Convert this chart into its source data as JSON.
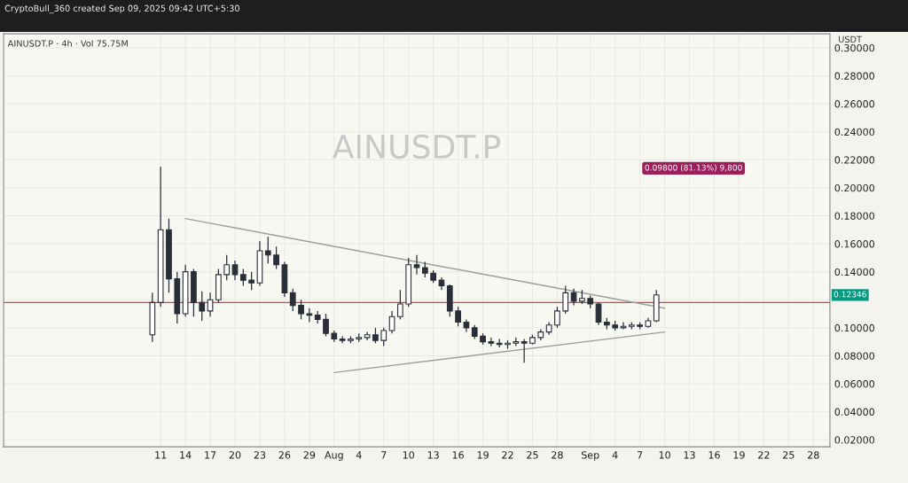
{
  "chart_data": {
    "type": "candlestick",
    "title": "AINUSDT.P",
    "subtitle": "AINUSDT.P · 4h · Vol 75.75M",
    "ylabel": "USDT",
    "annotations": [
      "CryptoBull_360 created Sep 09, 2025 09:42 UTC+5:30",
      "0.09800 (81.13%) 9,800",
      {
        "text": "0.12346",
        "y": 0.12346
      }
    ],
    "series": [
      {
        "color": "#2a2e39",
        "x": [
          "2025-07-10",
          "2025-07-11",
          "2025-07-12",
          "2025-07-13",
          "2025-07-14",
          "2025-07-15",
          "2025-07-16",
          "2025-07-17",
          "2025-07-18",
          "2025-07-19",
          "2025-07-20",
          "2025-07-21",
          "2025-07-22",
          "2025-07-23",
          "2025-07-24",
          "2025-07-25",
          "2025-07-26",
          "2025-07-27",
          "2025-07-28",
          "2025-07-29",
          "2025-07-30",
          "2025-07-31",
          "2025-08-01",
          "2025-08-02",
          "2025-08-03",
          "2025-08-04",
          "2025-08-05",
          "2025-08-06",
          "2025-08-07",
          "2025-08-08",
          "2025-08-09",
          "2025-08-10",
          "2025-08-11",
          "2025-08-12",
          "2025-08-13",
          "2025-08-14",
          "2025-08-15",
          "2025-08-16",
          "2025-08-17",
          "2025-08-18",
          "2025-08-19",
          "2025-08-20",
          "2025-08-21",
          "2025-08-22",
          "2025-08-23",
          "2025-08-24",
          "2025-08-25",
          "2025-08-26",
          "2025-08-27",
          "2025-08-28",
          "2025-08-29",
          "2025-08-30",
          "2025-08-31",
          "2025-09-01",
          "2025-09-02",
          "2025-09-03",
          "2025-09-04",
          "2025-09-05",
          "2025-09-06",
          "2025-09-07",
          "2025-09-08",
          "2025-09-09"
        ],
        "ohlc": [
          [
            0.095,
            0.125,
            0.09,
            0.118
          ],
          [
            0.118,
            0.215,
            0.115,
            0.17
          ],
          [
            0.17,
            0.178,
            0.125,
            0.135
          ],
          [
            0.135,
            0.14,
            0.103,
            0.11
          ],
          [
            0.11,
            0.145,
            0.108,
            0.14
          ],
          [
            0.14,
            0.142,
            0.108,
            0.118
          ],
          [
            0.118,
            0.126,
            0.105,
            0.112
          ],
          [
            0.112,
            0.125,
            0.108,
            0.12
          ],
          [
            0.12,
            0.142,
            0.118,
            0.138
          ],
          [
            0.138,
            0.152,
            0.134,
            0.145
          ],
          [
            0.145,
            0.148,
            0.134,
            0.138
          ],
          [
            0.138,
            0.142,
            0.13,
            0.134
          ],
          [
            0.134,
            0.14,
            0.127,
            0.132
          ],
          [
            0.132,
            0.162,
            0.13,
            0.155
          ],
          [
            0.155,
            0.165,
            0.146,
            0.152
          ],
          [
            0.152,
            0.158,
            0.142,
            0.145
          ],
          [
            0.145,
            0.147,
            0.122,
            0.125
          ],
          [
            0.125,
            0.128,
            0.112,
            0.116
          ],
          [
            0.116,
            0.12,
            0.106,
            0.11
          ],
          [
            0.11,
            0.114,
            0.104,
            0.109
          ],
          [
            0.109,
            0.112,
            0.103,
            0.106
          ],
          [
            0.106,
            0.11,
            0.094,
            0.096
          ],
          [
            0.096,
            0.098,
            0.09,
            0.092
          ],
          [
            0.092,
            0.094,
            0.089,
            0.091
          ],
          [
            0.091,
            0.094,
            0.089,
            0.092
          ],
          [
            0.092,
            0.096,
            0.09,
            0.093
          ],
          [
            0.093,
            0.097,
            0.091,
            0.095
          ],
          [
            0.095,
            0.1,
            0.089,
            0.091
          ],
          [
            0.091,
            0.1,
            0.087,
            0.098
          ],
          [
            0.098,
            0.112,
            0.096,
            0.108
          ],
          [
            0.108,
            0.127,
            0.106,
            0.117
          ],
          [
            0.117,
            0.15,
            0.115,
            0.145
          ],
          [
            0.145,
            0.152,
            0.138,
            0.143
          ],
          [
            0.143,
            0.147,
            0.136,
            0.139
          ],
          [
            0.139,
            0.141,
            0.132,
            0.134
          ],
          [
            0.134,
            0.136,
            0.127,
            0.13
          ],
          [
            0.13,
            0.131,
            0.108,
            0.112
          ],
          [
            0.112,
            0.115,
            0.101,
            0.104
          ],
          [
            0.104,
            0.106,
            0.097,
            0.1
          ],
          [
            0.1,
            0.102,
            0.092,
            0.094
          ],
          [
            0.094,
            0.096,
            0.088,
            0.09
          ],
          [
            0.09,
            0.093,
            0.087,
            0.089
          ],
          [
            0.089,
            0.092,
            0.086,
            0.088
          ],
          [
            0.088,
            0.091,
            0.085,
            0.089
          ],
          [
            0.089,
            0.093,
            0.087,
            0.09
          ],
          [
            0.09,
            0.092,
            0.075,
            0.089
          ],
          [
            0.089,
            0.095,
            0.088,
            0.093
          ],
          [
            0.093,
            0.099,
            0.091,
            0.097
          ],
          [
            0.097,
            0.104,
            0.095,
            0.102
          ],
          [
            0.102,
            0.115,
            0.1,
            0.112
          ],
          [
            0.112,
            0.13,
            0.11,
            0.125
          ],
          [
            0.125,
            0.128,
            0.116,
            0.119
          ],
          [
            0.119,
            0.127,
            0.117,
            0.121
          ],
          [
            0.121,
            0.123,
            0.114,
            0.117
          ],
          [
            0.117,
            0.118,
            0.102,
            0.104
          ],
          [
            0.104,
            0.107,
            0.099,
            0.102
          ],
          [
            0.102,
            0.105,
            0.098,
            0.1
          ],
          [
            0.1,
            0.104,
            0.099,
            0.101
          ],
          [
            0.101,
            0.104,
            0.099,
            0.102
          ],
          [
            0.102,
            0.104,
            0.099,
            0.101
          ],
          [
            0.101,
            0.107,
            0.1,
            0.105
          ],
          [
            0.105,
            0.127,
            0.104,
            0.12346
          ]
        ]
      },
      {
        "type": "line",
        "color": "#9e9e9e",
        "x": [
          "2025-07-14",
          "2025-09-10"
        ],
        "values": [
          0.178,
          0.114
        ]
      },
      {
        "type": "line",
        "color": "#9e9e9e",
        "x": [
          "2025-08-01",
          "2025-09-10"
        ],
        "values": [
          0.068,
          0.097
        ]
      }
    ],
    "ref_lines": [
      {
        "axis": "y",
        "value": 0.118,
        "color": "#e53935"
      }
    ],
    "xlim": [
      "2025-06-22",
      "2025-09-30"
    ],
    "xticks": [
      {
        "value": "2025-07-11",
        "label": "11"
      },
      {
        "value": "2025-07-14",
        "label": "14"
      },
      {
        "value": "2025-07-17",
        "label": "17"
      },
      {
        "value": "2025-07-20",
        "label": "20"
      },
      {
        "value": "2025-07-23",
        "label": "23"
      },
      {
        "value": "2025-07-26",
        "label": "26"
      },
      {
        "value": "2025-07-29",
        "label": "29"
      },
      {
        "value": "2025-08-01",
        "label": "Aug"
      },
      {
        "value": "2025-08-04",
        "label": "4"
      },
      {
        "value": "2025-08-07",
        "label": "7"
      },
      {
        "value": "2025-08-10",
        "label": "10"
      },
      {
        "value": "2025-08-13",
        "label": "13"
      },
      {
        "value": "2025-08-16",
        "label": "16"
      },
      {
        "value": "2025-08-19",
        "label": "19"
      },
      {
        "value": "2025-08-22",
        "label": "22"
      },
      {
        "value": "2025-08-25",
        "label": "25"
      },
      {
        "value": "2025-08-28",
        "label": "28"
      },
      {
        "value": "2025-09-01",
        "label": "Sep"
      },
      {
        "value": "2025-09-04",
        "label": "4"
      },
      {
        "value": "2025-09-07",
        "label": "7"
      },
      {
        "value": "2025-09-10",
        "label": "10"
      },
      {
        "value": "2025-09-13",
        "label": "13"
      },
      {
        "value": "2025-09-16",
        "label": "16"
      },
      {
        "value": "2025-09-19",
        "label": "19"
      },
      {
        "value": "2025-09-22",
        "label": "22"
      },
      {
        "value": "2025-09-25",
        "label": "25"
      },
      {
        "value": "2025-09-28",
        "label": "28"
      }
    ],
    "ylim": [
      0.015,
      0.31
    ],
    "yticks": [
      {
        "value": 0.02,
        "label": "0.02000"
      },
      {
        "value": 0.04,
        "label": "0.04000"
      },
      {
        "value": 0.06,
        "label": "0.06000"
      },
      {
        "value": 0.08,
        "label": "0.08000"
      },
      {
        "value": 0.1,
        "label": "0.10000"
      },
      {
        "value": 0.12,
        "label": null
      },
      {
        "value": 0.14,
        "label": "0.14000"
      },
      {
        "value": 0.16,
        "label": "0.16000"
      },
      {
        "value": 0.18,
        "label": "0.18000"
      },
      {
        "value": 0.2,
        "label": "0.20000"
      },
      {
        "value": 0.22,
        "label": "0.22000"
      },
      {
        "value": 0.24,
        "label": "0.24000"
      },
      {
        "value": 0.26,
        "label": "0.26000"
      },
      {
        "value": 0.28,
        "label": "0.28000"
      },
      {
        "value": 0.3,
        "label": "0.30000"
      }
    ],
    "grid": true
  }
}
